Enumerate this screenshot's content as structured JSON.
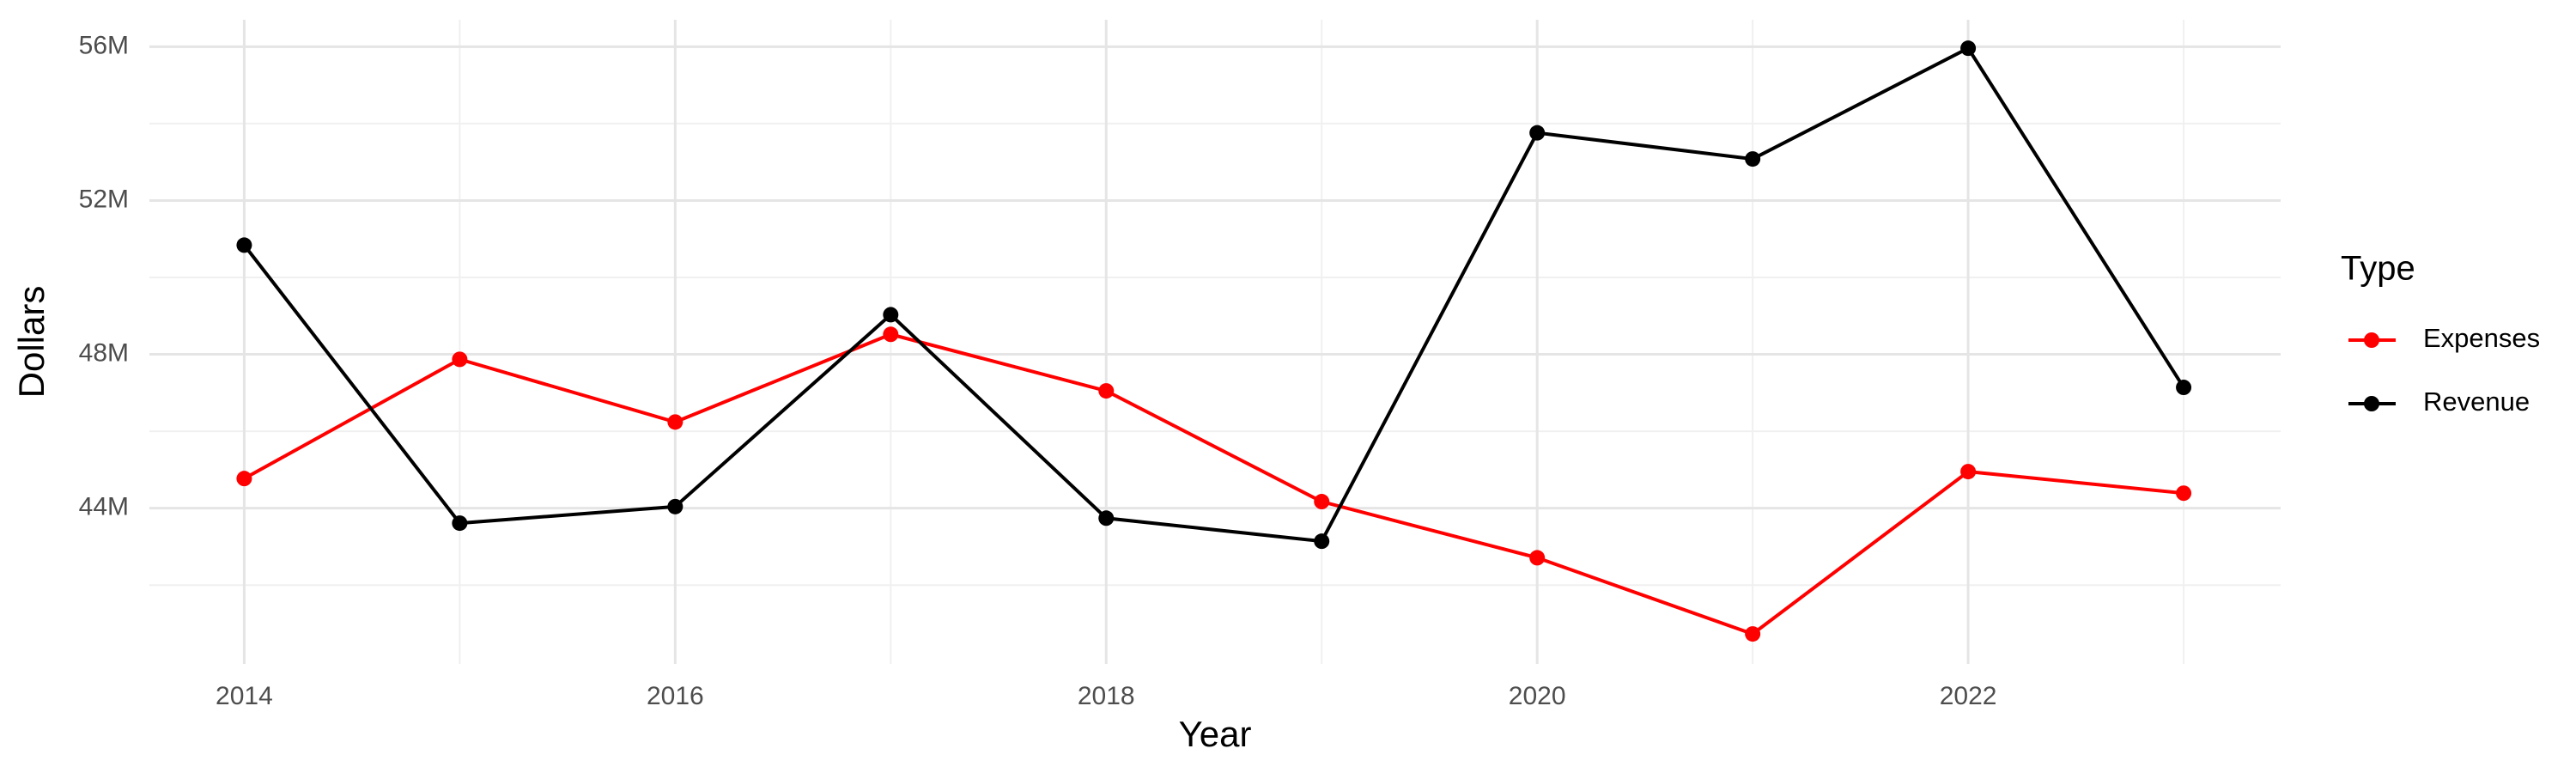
{
  "chart_data": {
    "type": "line",
    "x_label": "Year",
    "y_label": "Dollars",
    "legend_title": "Type",
    "legend_position": "right",
    "grid": true,
    "x": [
      2014,
      2015,
      2016,
      2017,
      2018,
      2019,
      2020,
      2021,
      2022,
      2023
    ],
    "series": [
      {
        "name": "Expenses",
        "color": "#ff0000",
        "values": [
          44770000,
          47870000,
          46240000,
          48520000,
          47050000,
          44170000,
          42710000,
          40730000,
          44950000,
          44390000
        ]
      },
      {
        "name": "Revenue",
        "color": "#000000",
        "values": [
          50840000,
          43610000,
          44040000,
          49030000,
          43740000,
          43140000,
          53760000,
          53080000,
          55960000,
          47140000
        ]
      }
    ],
    "xlim": [
      2013.56,
      2023.45
    ],
    "ylim": [
      39950000,
      56700000
    ],
    "xticks": [
      2014,
      2016,
      2018,
      2020,
      2022
    ],
    "xminor": [
      2015,
      2017,
      2019,
      2021,
      2023
    ],
    "yticks": [
      {
        "value": 44000000,
        "label": "44M"
      },
      {
        "value": 48000000,
        "label": "48M"
      },
      {
        "value": 52000000,
        "label": "52M"
      },
      {
        "value": 56000000,
        "label": "56M"
      }
    ],
    "yminor": [
      42000000,
      46000000,
      50000000,
      54000000
    ]
  }
}
